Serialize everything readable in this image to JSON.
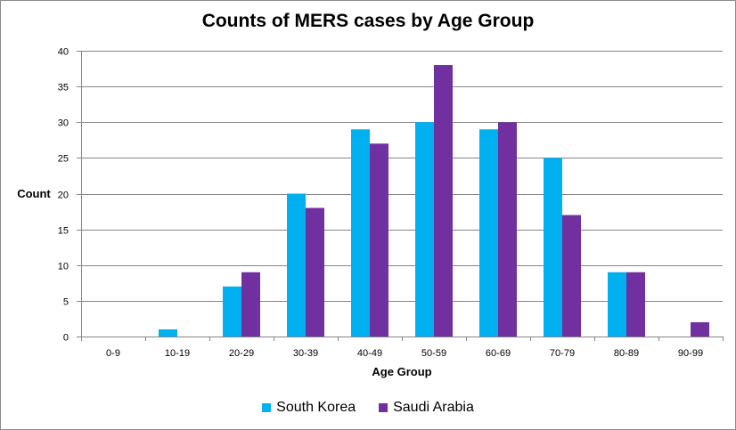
{
  "chart_data": {
    "type": "bar",
    "title": "Counts of MERS cases by Age Group",
    "xlabel": "Age Group",
    "ylabel": "Count",
    "ylim": [
      0,
      40
    ],
    "yticks": [
      0,
      5,
      10,
      15,
      20,
      25,
      30,
      35,
      40
    ],
    "grid": true,
    "legend_position": "bottom",
    "categories": [
      "0-9",
      "10-19",
      "20-29",
      "30-39",
      "40-49",
      "50-59",
      "60-69",
      "70-79",
      "80-89",
      "90-99"
    ],
    "series": [
      {
        "name": "South Korea",
        "color": "#00B0F0",
        "values": [
          0,
          1,
          7,
          20,
          29,
          30,
          29,
          25,
          9,
          0
        ]
      },
      {
        "name": "Saudi Arabia",
        "color": "#7030A0",
        "values": [
          0,
          0,
          9,
          18,
          27,
          38,
          30,
          17,
          9,
          2
        ]
      }
    ]
  }
}
